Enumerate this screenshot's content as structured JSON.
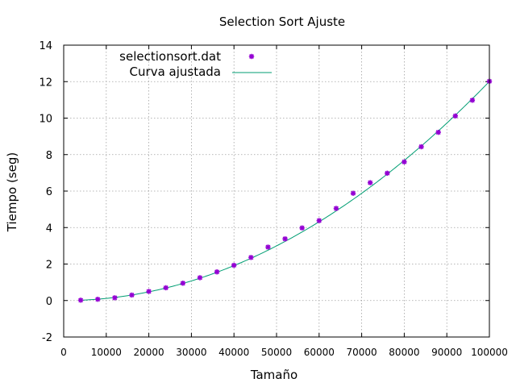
{
  "chart_data": {
    "type": "scatter",
    "title": "Selection Sort Ajuste",
    "xlabel": "Tamaño",
    "ylabel": "Tiempo (seg)",
    "xlim": [
      0,
      100000
    ],
    "ylim": [
      -2,
      14
    ],
    "xticks": [
      0,
      10000,
      20000,
      30000,
      40000,
      50000,
      60000,
      70000,
      80000,
      90000,
      100000
    ],
    "yticks": [
      -2,
      0,
      2,
      4,
      6,
      8,
      10,
      12,
      14
    ],
    "grid": true,
    "legend_position": "top-left",
    "series": [
      {
        "name": "selectionsort.dat",
        "kind": "points",
        "color": "#9400d3",
        "x": [
          4000,
          8000,
          12000,
          16000,
          20000,
          24000,
          28000,
          32000,
          36000,
          40000,
          44000,
          48000,
          52000,
          56000,
          60000,
          64000,
          68000,
          72000,
          76000,
          80000,
          84000,
          88000,
          92000,
          96000,
          100000
        ],
        "y": [
          0.02,
          0.07,
          0.15,
          0.3,
          0.5,
          0.7,
          0.95,
          1.25,
          1.57,
          1.93,
          2.36,
          2.93,
          3.38,
          3.98,
          4.38,
          5.05,
          5.88,
          6.46,
          6.98,
          7.6,
          8.43,
          9.22,
          10.12,
          10.98,
          12.02
        ]
      },
      {
        "name": "Curva ajustada",
        "kind": "line",
        "color": "#009e73",
        "fit": {
          "a": 1.204e-09,
          "b": -3e-07,
          "c": 0.0
        }
      }
    ]
  }
}
